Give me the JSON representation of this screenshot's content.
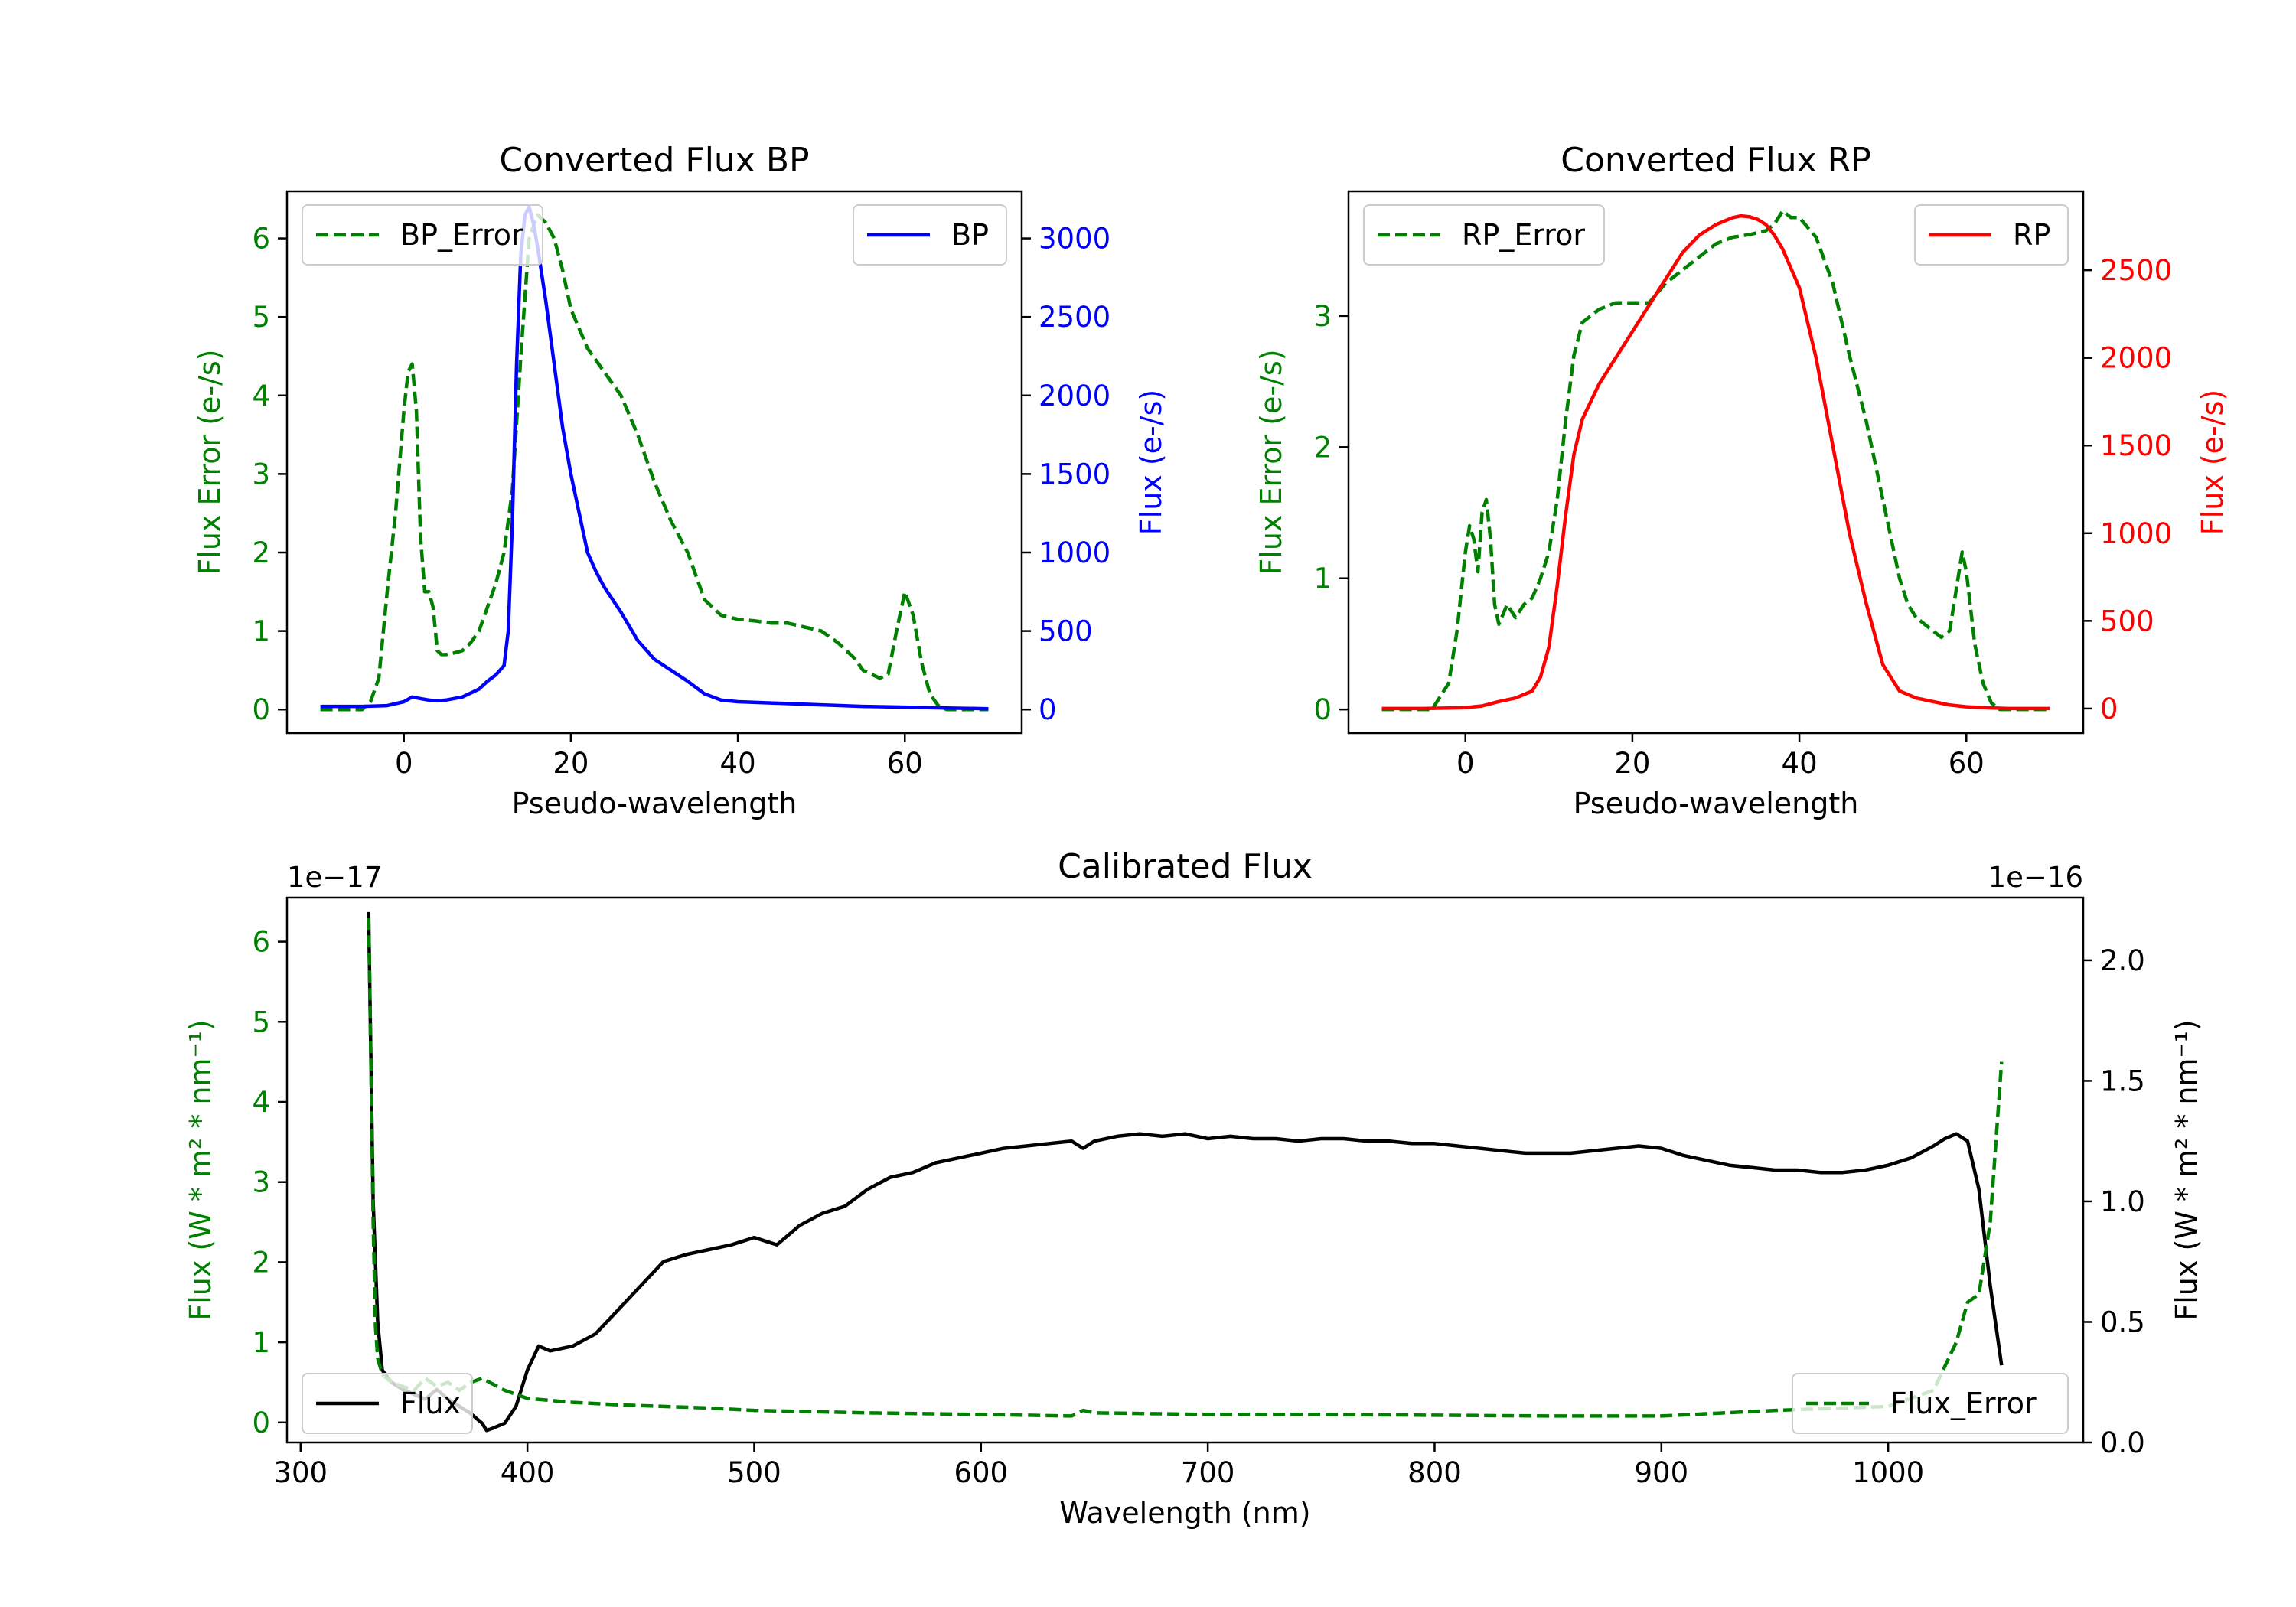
{
  "chart_data": [
    {
      "type": "line",
      "title": "Converted Flux BP",
      "xlabel": "Pseudo-wavelength",
      "xlim": [
        -14,
        74
      ],
      "x_ticks": [
        "0",
        "20",
        "40",
        "60"
      ],
      "y_left": {
        "label": "Flux Error (e-/s)",
        "color": "#008000",
        "lim": [
          -0.3,
          6.6
        ],
        "ticks": [
          "0",
          "1",
          "2",
          "3",
          "4",
          "5",
          "6"
        ]
      },
      "y_right": {
        "label": "Flux (e-/s)",
        "color": "#0000ff",
        "lim": [
          -150,
          3300
        ],
        "ticks": [
          "0",
          "500",
          "1000",
          "1500",
          "2000",
          "2500",
          "3000"
        ]
      },
      "legend_left": "BP_Error",
      "legend_right": "BP",
      "series": [
        {
          "name": "BP_Error",
          "axis": "left",
          "color": "#008000",
          "style": "dashed",
          "x": [
            -10,
            -5,
            -4,
            -3,
            -2,
            -1,
            0,
            0.5,
            1,
            1.5,
            2,
            2.5,
            3,
            3.5,
            4,
            4.5,
            5,
            6,
            7,
            8,
            9,
            10,
            11,
            12,
            13,
            14,
            15,
            16,
            17,
            18,
            19,
            20,
            22,
            24,
            26,
            28,
            30,
            32,
            34,
            36,
            38,
            40,
            42,
            44,
            46,
            48,
            50,
            52,
            54,
            55,
            56,
            57,
            58,
            59,
            60,
            61,
            62,
            63,
            64,
            65,
            66,
            68,
            70
          ],
          "y": [
            0,
            0,
            0.1,
            0.4,
            1.5,
            2.5,
            3.8,
            4.3,
            4.4,
            3.8,
            2.2,
            1.5,
            1.5,
            1.3,
            0.75,
            0.7,
            0.7,
            0.72,
            0.75,
            0.85,
            1.0,
            1.3,
            1.6,
            2.0,
            2.8,
            4.5,
            6.0,
            6.3,
            6.2,
            6.0,
            5.6,
            5.1,
            4.6,
            4.3,
            4.0,
            3.5,
            2.9,
            2.4,
            2.0,
            1.4,
            1.2,
            1.15,
            1.13,
            1.1,
            1.1,
            1.05,
            1.0,
            0.85,
            0.65,
            0.5,
            0.45,
            0.4,
            0.45,
            1.0,
            1.5,
            1.2,
            0.6,
            0.2,
            0.05,
            0,
            0,
            0,
            0
          ]
        },
        {
          "name": "BP",
          "axis": "right",
          "color": "#0000ff",
          "style": "solid",
          "x": [
            -10,
            -5,
            -2,
            0,
            1,
            2,
            3,
            4,
            5,
            7,
            9,
            10,
            11,
            12,
            12.5,
            13,
            13.5,
            14,
            14.5,
            15,
            15.5,
            16,
            17,
            18,
            19,
            20,
            21,
            22,
            23,
            24,
            26,
            28,
            30,
            32,
            34,
            36,
            38,
            40,
            45,
            50,
            55,
            60,
            65,
            70
          ],
          "y": [
            20,
            20,
            25,
            50,
            80,
            70,
            60,
            55,
            60,
            80,
            130,
            180,
            220,
            280,
            500,
            1200,
            2200,
            2900,
            3150,
            3200,
            3100,
            2950,
            2600,
            2200,
            1800,
            1500,
            1250,
            1000,
            880,
            780,
            620,
            440,
            320,
            250,
            180,
            100,
            60,
            50,
            40,
            30,
            20,
            15,
            10,
            5
          ]
        }
      ]
    },
    {
      "type": "line",
      "title": "Converted Flux RP",
      "xlabel": "Pseudo-wavelength",
      "xlim": [
        -14,
        74
      ],
      "x_ticks": [
        "0",
        "20",
        "40",
        "60"
      ],
      "y_left": {
        "label": "Flux Error (e-/s)",
        "color": "#008000",
        "lim": [
          -0.18,
          3.95
        ],
        "ticks": [
          "0",
          "1",
          "2",
          "3"
        ]
      },
      "y_right": {
        "label": "Flux (e-/s)",
        "color": "#ff0000",
        "lim": [
          -140,
          2950
        ],
        "ticks": [
          "0",
          "500",
          "1000",
          "1500",
          "2000",
          "2500"
        ]
      },
      "legend_left": "RP_Error",
      "legend_right": "RP",
      "series": [
        {
          "name": "RP_Error",
          "axis": "left",
          "color": "#008000",
          "style": "dashed",
          "x": [
            -10,
            -5,
            -4,
            -3,
            -2,
            -1,
            0,
            0.5,
            1,
            1.5,
            2,
            2.5,
            3,
            3.5,
            4,
            5,
            6,
            7,
            8,
            9,
            10,
            11,
            12,
            13,
            14,
            15,
            16,
            18,
            20,
            22,
            24,
            26,
            28,
            30,
            32,
            34,
            36,
            37,
            38,
            39,
            40,
            42,
            44,
            46,
            48,
            50,
            52,
            53,
            54,
            55,
            56,
            57,
            58,
            59,
            59.5,
            60,
            61,
            62,
            63,
            64,
            65,
            66,
            68,
            70
          ],
          "y": [
            0,
            0,
            0,
            0.1,
            0.2,
            0.6,
            1.2,
            1.4,
            1.3,
            1.05,
            1.5,
            1.6,
            1.3,
            0.8,
            0.65,
            0.8,
            0.7,
            0.8,
            0.85,
            1.0,
            1.2,
            1.6,
            2.2,
            2.7,
            2.95,
            3.0,
            3.05,
            3.1,
            3.1,
            3.1,
            3.25,
            3.35,
            3.45,
            3.55,
            3.6,
            3.62,
            3.65,
            3.7,
            3.8,
            3.75,
            3.75,
            3.6,
            3.25,
            2.7,
            2.2,
            1.6,
            1.0,
            0.8,
            0.7,
            0.65,
            0.6,
            0.55,
            0.6,
            1.0,
            1.2,
            1.05,
            0.5,
            0.2,
            0.05,
            0,
            0,
            0,
            0,
            0
          ]
        },
        {
          "name": "RP",
          "axis": "right",
          "color": "#ff0000",
          "style": "solid",
          "x": [
            -10,
            -5,
            0,
            2,
            4,
            6,
            8,
            9,
            10,
            11,
            12,
            13,
            14,
            15,
            16,
            18,
            20,
            22,
            24,
            26,
            28,
            30,
            32,
            33,
            34,
            35,
            36,
            37,
            38,
            40,
            42,
            44,
            46,
            48,
            50,
            52,
            54,
            56,
            58,
            60,
            62,
            65,
            70
          ],
          "y": [
            0,
            0,
            5,
            15,
            40,
            60,
            100,
            180,
            350,
            700,
            1100,
            1450,
            1650,
            1750,
            1850,
            2000,
            2150,
            2300,
            2450,
            2600,
            2700,
            2760,
            2800,
            2810,
            2805,
            2790,
            2760,
            2700,
            2620,
            2400,
            2000,
            1500,
            1000,
            600,
            250,
            100,
            60,
            40,
            20,
            10,
            5,
            0,
            0
          ]
        }
      ]
    },
    {
      "type": "line",
      "title": "Calibrated Flux",
      "xlabel": "Wavelength (nm)",
      "xlim": [
        294,
        1086
      ],
      "x_ticks": [
        "300",
        "400",
        "500",
        "600",
        "700",
        "800",
        "900",
        "1000"
      ],
      "y_left": {
        "label": "Flux (W * m² * nm⁻¹)",
        "color": "#008000",
        "lim": [
          -0.25,
          6.55
        ],
        "ticks": [
          "0",
          "1",
          "2",
          "3",
          "4",
          "5",
          "6"
        ],
        "offset": "1e−17"
      },
      "y_right": {
        "label": "Flux (W * m² * nm⁻¹)",
        "color": "#000000",
        "lim": [
          0,
          2.26
        ],
        "ticks": [
          "0.0",
          "0.5",
          "1.0",
          "1.5",
          "2.0"
        ],
        "offset": "1e−16"
      },
      "legend_left": "Flux",
      "legend_right": "Flux_Error",
      "series": [
        {
          "name": "Flux",
          "axis": "right",
          "color": "#000000",
          "style": "solid",
          "x": [
            330,
            331,
            332,
            334,
            336,
            340,
            345,
            350,
            355,
            360,
            365,
            370,
            375,
            380,
            382,
            385,
            390,
            395,
            400,
            405,
            410,
            420,
            430,
            440,
            450,
            460,
            470,
            480,
            490,
            500,
            510,
            520,
            530,
            540,
            550,
            560,
            570,
            580,
            590,
            600,
            610,
            620,
            630,
            640,
            645,
            650,
            660,
            670,
            680,
            690,
            700,
            710,
            720,
            730,
            740,
            750,
            760,
            770,
            780,
            790,
            800,
            810,
            820,
            830,
            840,
            850,
            860,
            870,
            880,
            890,
            900,
            910,
            920,
            930,
            940,
            950,
            960,
            970,
            980,
            990,
            1000,
            1010,
            1020,
            1025,
            1030,
            1035,
            1040,
            1045,
            1050
          ],
          "y": [
            2.2,
            1.6,
            1.0,
            0.5,
            0.3,
            0.25,
            0.22,
            0.2,
            0.18,
            0.22,
            0.18,
            0.15,
            0.12,
            0.08,
            0.05,
            0.06,
            0.08,
            0.15,
            0.3,
            0.4,
            0.38,
            0.4,
            0.45,
            0.55,
            0.65,
            0.75,
            0.78,
            0.8,
            0.82,
            0.85,
            0.82,
            0.9,
            0.95,
            0.98,
            1.05,
            1.1,
            1.12,
            1.16,
            1.18,
            1.2,
            1.22,
            1.23,
            1.24,
            1.25,
            1.22,
            1.25,
            1.27,
            1.28,
            1.27,
            1.28,
            1.26,
            1.27,
            1.26,
            1.26,
            1.25,
            1.26,
            1.26,
            1.25,
            1.25,
            1.24,
            1.24,
            1.23,
            1.22,
            1.21,
            1.2,
            1.2,
            1.2,
            1.21,
            1.22,
            1.23,
            1.22,
            1.19,
            1.17,
            1.15,
            1.14,
            1.13,
            1.13,
            1.12,
            1.12,
            1.13,
            1.15,
            1.18,
            1.23,
            1.26,
            1.28,
            1.25,
            1.05,
            0.65,
            0.32
          ]
        },
        {
          "name": "Flux_Error",
          "axis": "left",
          "color": "#008000",
          "style": "dashed",
          "x": [
            330,
            331,
            332,
            333,
            334,
            336,
            340,
            345,
            350,
            355,
            360,
            365,
            370,
            375,
            380,
            390,
            400,
            420,
            440,
            460,
            480,
            500,
            550,
            600,
            640,
            645,
            650,
            700,
            750,
            800,
            850,
            900,
            950,
            1000,
            1010,
            1020,
            1025,
            1030,
            1035,
            1040,
            1045,
            1050
          ],
          "y": [
            6.3,
            4.5,
            2.5,
            1.2,
            0.8,
            0.6,
            0.5,
            0.45,
            0.4,
            0.55,
            0.45,
            0.5,
            0.4,
            0.5,
            0.55,
            0.4,
            0.3,
            0.25,
            0.22,
            0.2,
            0.18,
            0.15,
            0.12,
            0.1,
            0.08,
            0.15,
            0.12,
            0.1,
            0.1,
            0.09,
            0.08,
            0.08,
            0.15,
            0.2,
            0.3,
            0.4,
            0.7,
            1.0,
            1.5,
            1.6,
            2.5,
            4.5
          ]
        }
      ]
    }
  ]
}
